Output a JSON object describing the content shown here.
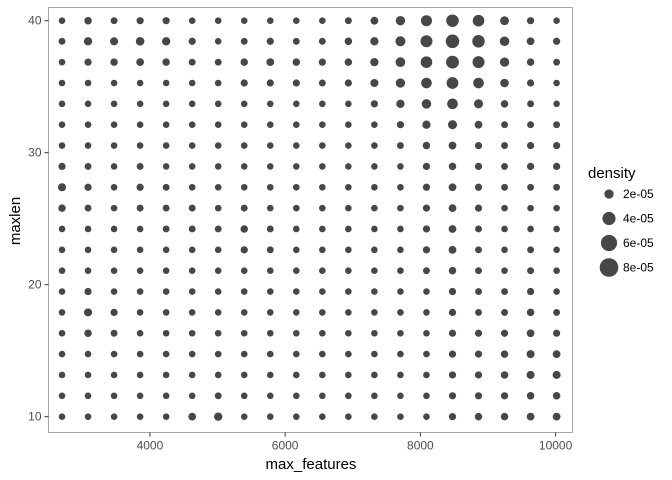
{
  "colors": {
    "point": "#474747",
    "panel_border": "#a6a6a6",
    "background": "#ffffff",
    "tick_text": "#4d4d4d"
  },
  "chart_data": {
    "type": "scatter",
    "xlabel": "max_features",
    "ylabel": "maxlen",
    "xlim": [
      2500,
      10250
    ],
    "ylim": [
      8.8,
      41.0
    ],
    "x_ticks": [
      4000,
      6000,
      8000,
      10000
    ],
    "x_tick_labels": [
      "4000",
      "6000",
      "8000",
      "10000"
    ],
    "y_ticks": [
      10,
      20,
      30,
      40
    ],
    "y_tick_labels": [
      "10",
      "20",
      "30",
      "40"
    ],
    "grid": false,
    "legend_position": "right",
    "size_legend": {
      "title": "density",
      "values": [
        2e-05,
        4e-05,
        6e-05,
        8e-05
      ],
      "labels": [
        "2e-05",
        "4e-05",
        "6e-05",
        "8e-05"
      ]
    },
    "x": [
      2700,
      3085,
      3470,
      3855,
      4240,
      4625,
      5010,
      5395,
      5780,
      6165,
      6550,
      6935,
      7320,
      7705,
      8090,
      8475,
      8860,
      9245,
      9630,
      10015
    ],
    "y": [
      10,
      11.58,
      13.16,
      14.74,
      16.32,
      17.9,
      19.48,
      21.06,
      22.64,
      24.22,
      25.8,
      27.38,
      28.96,
      30.54,
      32.12,
      33.7,
      35.28,
      36.86,
      38.44,
      40
    ],
    "size_field": "density",
    "z_rows": [
      [
        0.7,
        0.8,
        0.7,
        0.8,
        0.8,
        1.4,
        1.6,
        1.0,
        0.8,
        0.7,
        0.7,
        0.7,
        0.7,
        0.8,
        1.0,
        1.2,
        1.3,
        1.3,
        1.4,
        1.4
      ],
      [
        0.6,
        0.9,
        0.7,
        0.7,
        0.7,
        0.9,
        1.1,
        0.8,
        0.6,
        0.6,
        0.6,
        0.7,
        0.7,
        0.8,
        1.0,
        1.2,
        1.2,
        1.2,
        1.3,
        1.3
      ],
      [
        0.6,
        0.8,
        0.6,
        0.6,
        0.7,
        0.8,
        1.0,
        0.7,
        0.6,
        0.6,
        0.6,
        0.7,
        0.7,
        0.8,
        1.0,
        1.2,
        1.2,
        1.3,
        1.5,
        1.5
      ],
      [
        0.8,
        1.0,
        0.8,
        0.7,
        0.7,
        0.9,
        1.0,
        0.8,
        0.7,
        0.7,
        0.6,
        0.7,
        0.7,
        0.8,
        1.0,
        1.2,
        1.2,
        1.3,
        1.5,
        1.4
      ],
      [
        0.9,
        1.3,
        1.1,
        0.9,
        0.8,
        0.9,
        1.0,
        0.8,
        0.7,
        0.7,
        0.6,
        0.7,
        0.7,
        0.8,
        1.0,
        1.2,
        1.2,
        1.2,
        1.4,
        1.2
      ],
      [
        0.8,
        1.5,
        1.2,
        0.9,
        0.8,
        0.8,
        0.9,
        0.8,
        0.7,
        0.7,
        0.6,
        0.7,
        0.7,
        0.8,
        1.0,
        1.2,
        1.1,
        1.1,
        1.3,
        1.1
      ],
      [
        0.7,
        1.2,
        1.0,
        0.8,
        0.8,
        0.8,
        0.8,
        0.8,
        0.8,
        0.7,
        0.6,
        0.7,
        0.7,
        0.8,
        1.0,
        1.2,
        1.1,
        1.1,
        1.2,
        1.0
      ],
      [
        0.8,
        1.0,
        0.8,
        0.8,
        0.9,
        0.9,
        0.9,
        1.0,
        1.0,
        0.8,
        0.7,
        0.7,
        0.7,
        0.9,
        1.1,
        1.3,
        1.1,
        1.0,
        1.1,
        1.0
      ],
      [
        0.9,
        1.0,
        0.8,
        0.9,
        1.0,
        1.0,
        1.0,
        1.2,
        1.1,
        0.9,
        0.7,
        0.7,
        0.8,
        1.0,
        1.2,
        1.4,
        1.1,
        1.0,
        1.1,
        1.0
      ],
      [
        1.0,
        1.0,
        0.8,
        1.0,
        1.1,
        1.1,
        1.1,
        1.3,
        1.1,
        0.9,
        0.8,
        0.8,
        0.8,
        1.0,
        1.2,
        1.4,
        1.1,
        1.0,
        1.0,
        1.0
      ],
      [
        1.3,
        1.1,
        0.9,
        1.1,
        1.1,
        1.1,
        1.0,
        1.1,
        1.0,
        0.9,
        0.8,
        0.8,
        0.9,
        1.0,
        1.2,
        1.4,
        1.2,
        1.0,
        1.0,
        1.0
      ],
      [
        1.5,
        1.2,
        0.9,
        1.2,
        1.1,
        1.0,
        0.9,
        0.9,
        0.9,
        0.8,
        0.8,
        0.9,
        0.9,
        1.0,
        1.2,
        1.4,
        1.2,
        1.1,
        1.1,
        1.1
      ],
      [
        1.2,
        1.1,
        0.9,
        1.1,
        1.0,
        0.9,
        0.8,
        0.8,
        0.8,
        0.8,
        0.8,
        0.9,
        0.9,
        1.0,
        1.2,
        1.3,
        1.2,
        1.1,
        1.2,
        1.2
      ],
      [
        0.9,
        1.0,
        0.8,
        1.0,
        0.9,
        0.8,
        0.8,
        0.8,
        0.8,
        0.8,
        0.8,
        0.9,
        0.9,
        1.1,
        1.3,
        1.4,
        1.2,
        1.1,
        1.2,
        1.2
      ],
      [
        0.7,
        0.9,
        0.8,
        0.9,
        0.8,
        0.7,
        0.7,
        0.7,
        0.7,
        0.7,
        0.8,
        0.9,
        1.0,
        1.2,
        1.6,
        1.9,
        1.4,
        1.1,
        1.1,
        1.1
      ],
      [
        0.8,
        0.9,
        0.9,
        0.9,
        0.8,
        0.8,
        0.8,
        0.8,
        0.8,
        0.9,
        0.9,
        1.0,
        1.2,
        1.6,
        2.1,
        2.6,
        1.9,
        1.3,
        1.1,
        1.0
      ],
      [
        0.8,
        0.9,
        0.9,
        0.9,
        0.9,
        0.9,
        1.0,
        1.2,
        1.2,
        1.2,
        1.1,
        1.2,
        1.5,
        2.0,
        2.6,
        3.2,
        2.6,
        1.7,
        1.2,
        1.0
      ],
      [
        1.0,
        1.2,
        1.3,
        1.4,
        1.3,
        1.1,
        1.1,
        1.3,
        1.4,
        1.3,
        1.2,
        1.3,
        1.6,
        2.2,
        3.1,
        3.8,
        3.3,
        2.0,
        1.3,
        1.1
      ],
      [
        1.1,
        1.6,
        1.5,
        1.7,
        1.6,
        1.2,
        1.0,
        1.1,
        1.2,
        1.1,
        1.1,
        1.3,
        1.6,
        2.3,
        3.3,
        4.2,
        3.6,
        2.1,
        1.4,
        1.2
      ],
      [
        0.9,
        1.3,
        1.1,
        1.2,
        1.2,
        0.9,
        0.8,
        0.9,
        0.9,
        0.9,
        0.9,
        1.1,
        1.4,
        2.0,
        2.8,
        3.6,
        3.1,
        1.8,
        1.2,
        1.0
      ]
    ]
  },
  "chart_meta": {
    "z_scale": 1e-05
  }
}
